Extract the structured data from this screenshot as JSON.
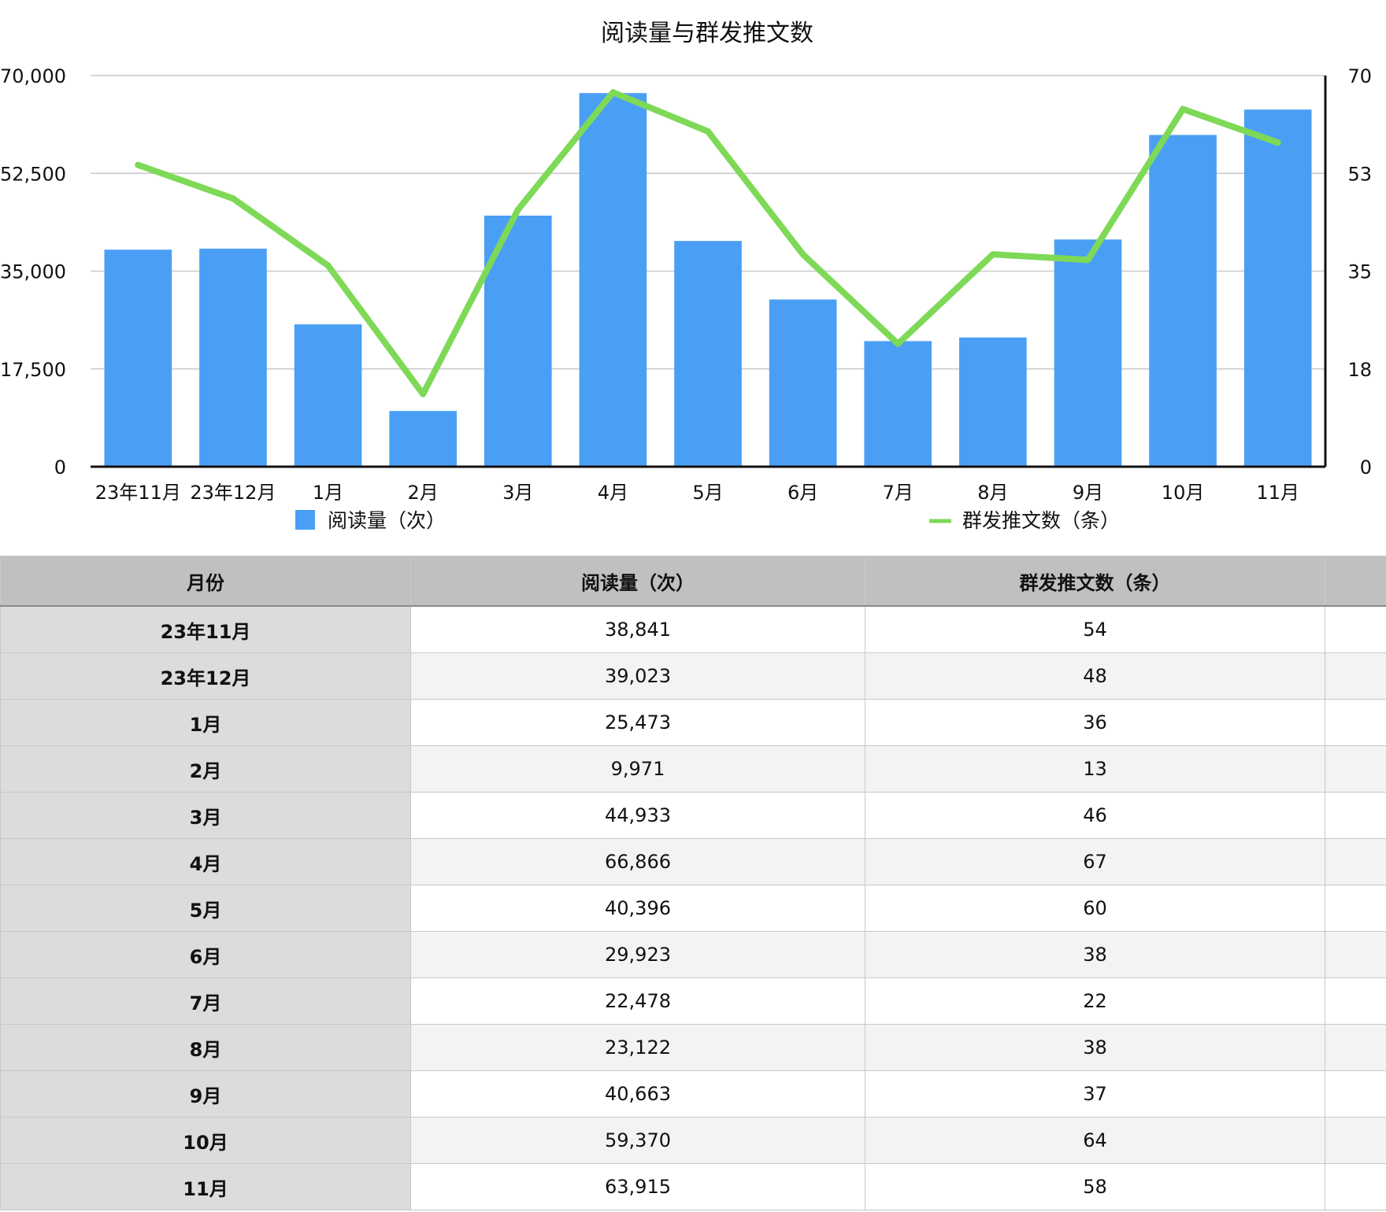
{
  "chart_data": {
    "type": "bar+line",
    "title": "阅读量与群发推文数",
    "categories": [
      "23年11月",
      "23年12月",
      "1月",
      "2月",
      "3月",
      "4月",
      "5月",
      "6月",
      "7月",
      "8月",
      "9月",
      "10月",
      "11月"
    ],
    "series": [
      {
        "name": "阅读量（次）",
        "type": "bar",
        "axis": "left",
        "color": "#4a9ff5",
        "values": [
          38841,
          39023,
          25473,
          9971,
          44933,
          66866,
          40396,
          29923,
          22478,
          23122,
          40663,
          59370,
          63915
        ]
      },
      {
        "name": "群发推文数（条）",
        "type": "line",
        "axis": "right",
        "color": "#7ed957",
        "values": [
          54,
          48,
          36,
          13,
          46,
          67,
          60,
          38,
          22,
          38,
          37,
          64,
          58
        ]
      }
    ],
    "y_left": {
      "ticks": [
        "0",
        "17,500",
        "35,000",
        "52,500",
        "70,000"
      ],
      "ylim": [
        0,
        70000
      ]
    },
    "y_right": {
      "ticks": [
        "0",
        "18",
        "35",
        "53",
        "70"
      ],
      "ylim": [
        0,
        70
      ]
    },
    "grid": true,
    "legend_position": "bottom"
  },
  "table": {
    "headers": [
      "月份",
      "阅读量（次）",
      "群发推文数（条）"
    ],
    "rows": [
      [
        "23年11月",
        "38,841",
        "54"
      ],
      [
        "23年12月",
        "39,023",
        "48"
      ],
      [
        "1月",
        "25,473",
        "36"
      ],
      [
        "2月",
        "9,971",
        "13"
      ],
      [
        "3月",
        "44,933",
        "46"
      ],
      [
        "4月",
        "66,866",
        "67"
      ],
      [
        "5月",
        "40,396",
        "60"
      ],
      [
        "6月",
        "29,923",
        "38"
      ],
      [
        "7月",
        "22,478",
        "22"
      ],
      [
        "8月",
        "23,122",
        "38"
      ],
      [
        "9月",
        "40,663",
        "37"
      ],
      [
        "10月",
        "59,370",
        "64"
      ],
      [
        "11月",
        "63,915",
        "58"
      ]
    ]
  }
}
